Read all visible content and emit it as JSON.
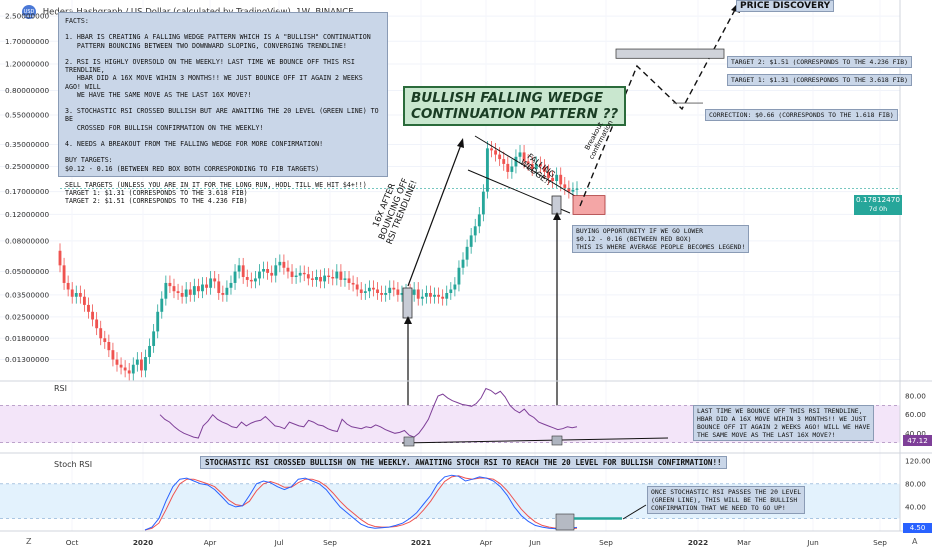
{
  "header": {
    "title": "Hedera Hashgraph / US Dollar (calculated by TradingView), 1W, BINANCE",
    "currency_badge": "USD"
  },
  "price_axis": {
    "ticks": [
      "2.50000000",
      "1.70000000",
      "1.20000000",
      "0.80000000",
      "0.55000000",
      "0.35000000",
      "0.25000000",
      "0.17000000",
      "0.12000000",
      "0.08000000",
      "0.05000000",
      "0.03500000",
      "0.02500000",
      "0.01800000",
      "0.01300000"
    ],
    "last_price": "0.17812470",
    "last_price_sub": "7d 0h"
  },
  "time_axis": {
    "ticks": [
      "Oct",
      "2020",
      "Apr",
      "Jul",
      "Sep",
      "2021",
      "Apr",
      "Jun",
      "Sep",
      "2022",
      "Mar",
      "Jun",
      "Sep"
    ],
    "left_icon": "Z",
    "right_icon": "A"
  },
  "rsi_pane": {
    "label": "RSI",
    "ticks": [
      "80.00",
      "60.00",
      "40.00"
    ],
    "value": "47.12"
  },
  "stoch_pane": {
    "label": "Stoch RSI",
    "ticks": [
      "120.00",
      "80.00",
      "40.00"
    ],
    "value": "4.50"
  },
  "annotations": {
    "facts": "FACTS:\n\n1. HBAR IS CREATING A FALLING WEDGE PATTERN WHICH IS A \"BULLISH\" CONTINUATION\n   PATTERN BOUNCING BETWEEN TWO DOWNWARD SLOPING, CONVERGING TRENDLINE!\n\n2. RSI IS HIGHLY OVERSOLD ON THE WEEKLY! LAST TIME WE BOUNCE OFF THIS RSI TRENDLINE,\n   HBAR DID A 16X MOVE WIHIN 3 MONTHS!! WE JUST BOUNCE OFF IT AGAIN 2 WEEKS AGO! WILL\n   WE HAVE THE SAME MOVE AS THE LAST 16X MOVE?!\n\n3. STOCHASTIC RSI CROSSED BULLISH BUT ARE AWAITING THE 20 LEVEL (GREEN LINE) TO BE\n   CROSSED FOR BULLISH CONFIRMATION ON THE WEEKLY!\n\n4. NEEDS A BREAKOUT FROM THE FALLING WEDGE FOR MORE CONFIRMATION!\n\nBUY TARGETS:\n$0.12 - 0.16 (BETWEEN RED BOX BOTH CORRESPONDING TO FIB TARGETS)\n\nSELL TARGETS (UNLESS YOU ARE IN IT FOR THE LONG RUN, HODL TILL WE HIT $4+!!)\nTARGET 1: $1.31 (CORRESPONDS TO THE 3.618 FIB)\nTARGET 2: $1.51 (CORRESPONDS TO THE 4.236 FIB)",
    "pattern_title": "BULLISH FALLING WEDGE\nCONTINUATION PATTERN ??",
    "price_discovery": "PRICE DISCOVERY",
    "target2": "TARGET 2: $1.51 (CORRESPONDS TO THE 4.236 FIB)",
    "target1": "TARGET 1: $1.31 (CORRESPONDS TO THE 3.618 FIB)",
    "correction": "CORRECTION: $0.66 (CORRESPONDS TO THE 1.618 FIB)",
    "buying_opportunity": "BUYING OPPORTUNITY IF WE GO LOWER\n$0.12 - 0.16 (BETWEEN RED BOX)\nTHIS IS WHERE AVERAGE PEOPLE BECOMES LEGEND!",
    "rsi_note": "LAST TIME WE BOUNCE OFF THIS RSI TRENDLINE,\nHBAR DID A 16X MOVE WIHIN 3 MONTHS!! WE JUST\nBOUNCE OFF IT AGAIN 2 WEEKS AGO! WILL WE HAVE\nTHE SAME MOVE AS THE LAST 16X MOVE?!",
    "stoch_banner": "STOCHASTIC RSI CROSSED BULLISH ON THE WEEKLY. AWAITING STOCH RSI TO REACH THE 20 LEVEL FOR BULLISH CONFIRMATION!!",
    "stoch_note": "ONCE STOCHASTIC RSI PASSES THE 20 LEVEL\n(GREEN LINE), THIS WILL BE THE BULLISH\nCONFIRMATION THAT WE NEED TO GO UP!",
    "move16x": "16X AFTER\nBOUNCING OFF\nRSI TRENDLINE!",
    "falling_wedge": "FALLING\nWEDGE!!",
    "breakout": "Breakout\nconfirmation"
  },
  "colors": {
    "up": "#26a69a",
    "down": "#ef5350",
    "rsi": "#7e3f98",
    "stoch_k": "#2962ff",
    "stoch_d": "#ef5350",
    "note_bg": "#c9d6e8"
  },
  "chart_data": [
    {
      "type": "candlestick",
      "title": "Hedera Hashgraph / US Dollar (calculated by TradingView), 1W, BINANCE",
      "y_scale": "log",
      "ylim": [
        0.0095,
        3.2
      ],
      "x_ticks": [
        "Oct",
        "2020",
        "Apr",
        "Jul",
        "Sep",
        "2021",
        "Apr",
        "Jun",
        "Sep",
        "2022",
        "Mar",
        "Jun",
        "Sep"
      ],
      "close_path": [
        0.055,
        0.042,
        0.038,
        0.034,
        0.036,
        0.034,
        0.03,
        0.027,
        0.024,
        0.021,
        0.018,
        0.017,
        0.015,
        0.013,
        0.012,
        0.0115,
        0.011,
        0.0105,
        0.012,
        0.013,
        0.011,
        0.0135,
        0.016,
        0.02,
        0.027,
        0.033,
        0.042,
        0.04,
        0.037,
        0.036,
        0.034,
        0.038,
        0.035,
        0.04,
        0.037,
        0.041,
        0.039,
        0.045,
        0.043,
        0.036,
        0.035,
        0.039,
        0.042,
        0.05,
        0.055,
        0.046,
        0.044,
        0.043,
        0.045,
        0.05,
        0.052,
        0.049,
        0.047,
        0.055,
        0.058,
        0.053,
        0.05,
        0.046,
        0.047,
        0.049,
        0.048,
        0.045,
        0.044,
        0.046,
        0.043,
        0.047,
        0.046,
        0.045,
        0.05,
        0.044,
        0.045,
        0.042,
        0.041,
        0.038,
        0.036,
        0.037,
        0.039,
        0.038,
        0.036,
        0.035,
        0.036,
        0.039,
        0.038,
        0.035,
        0.036,
        0.037,
        0.035,
        0.038,
        0.033,
        0.034,
        0.036,
        0.034,
        0.035,
        0.034,
        0.033,
        0.036,
        0.038,
        0.041,
        0.053,
        0.06,
        0.073,
        0.087,
        0.1,
        0.12,
        0.17,
        0.33,
        0.32,
        0.3,
        0.28,
        0.26,
        0.23,
        0.25,
        0.29,
        0.31,
        0.27,
        0.26,
        0.24,
        0.26,
        0.25,
        0.23,
        0.21,
        0.2,
        0.22,
        0.19,
        0.18,
        0.17,
        0.175,
        0.178
      ],
      "last_price": 0.1781247,
      "levels": {
        "target2": 1.51,
        "target1": 1.31,
        "correction": 0.66,
        "buy_zone": [
          0.12,
          0.16
        ]
      }
    },
    {
      "type": "line",
      "title": "RSI",
      "ylim": [
        20,
        95
      ],
      "ticks": [
        80,
        60,
        40
      ],
      "band": [
        30,
        70
      ],
      "series": [
        {
          "name": "RSI",
          "values": [
            60,
            55,
            52,
            47,
            43,
            40,
            38,
            36,
            35,
            48,
            53,
            60,
            55,
            52,
            50,
            47,
            46,
            52,
            48,
            51,
            53,
            54,
            58,
            53,
            48,
            47,
            45,
            52,
            50,
            48,
            47,
            54,
            52,
            49,
            48,
            45,
            43,
            42,
            55,
            50,
            47,
            46,
            45,
            47,
            46,
            49,
            47,
            44,
            42,
            40,
            41,
            43,
            38,
            36,
            40,
            47,
            55,
            68,
            80,
            82,
            78,
            75,
            73,
            71,
            70,
            69,
            72,
            78,
            88,
            86,
            82,
            85,
            79,
            70,
            65,
            62,
            66,
            60,
            57,
            52,
            50,
            48,
            46,
            44,
            45,
            47,
            46,
            47.12
          ]
        }
      ],
      "last_value": 47.12
    },
    {
      "type": "line",
      "title": "Stoch RSI",
      "ylim": [
        0,
        130
      ],
      "ticks": [
        120,
        80,
        40
      ],
      "band": [
        20,
        80
      ],
      "series": [
        {
          "name": "K",
          "values": [
            0,
            5,
            20,
            50,
            75,
            88,
            90,
            85,
            80,
            78,
            70,
            58,
            45,
            40,
            42,
            60,
            80,
            85,
            82,
            75,
            70,
            75,
            88,
            90,
            85,
            80,
            70,
            55,
            40,
            30,
            20,
            10,
            5,
            3,
            4,
            5,
            8,
            12,
            20,
            30,
            45,
            60,
            80,
            92,
            95,
            93,
            85,
            88,
            92,
            90,
            85,
            75,
            60,
            40,
            25,
            15,
            8,
            5,
            3,
            2,
            2,
            3,
            4.5
          ]
        },
        {
          "name": "D",
          "values": [
            0,
            3,
            12,
            35,
            60,
            80,
            88,
            88,
            84,
            80,
            75,
            64,
            52,
            44,
            42,
            50,
            68,
            80,
            84,
            80,
            74,
            74,
            82,
            88,
            88,
            84,
            76,
            64,
            50,
            38,
            28,
            18,
            10,
            6,
            5,
            5,
            6,
            9,
            14,
            22,
            35,
            50,
            68,
            84,
            92,
            94,
            90,
            88,
            90,
            90,
            88,
            80,
            68,
            52,
            36,
            24,
            14,
            8,
            5,
            3,
            2,
            2,
            3
          ]
        }
      ],
      "last_value": 4.5
    }
  ]
}
